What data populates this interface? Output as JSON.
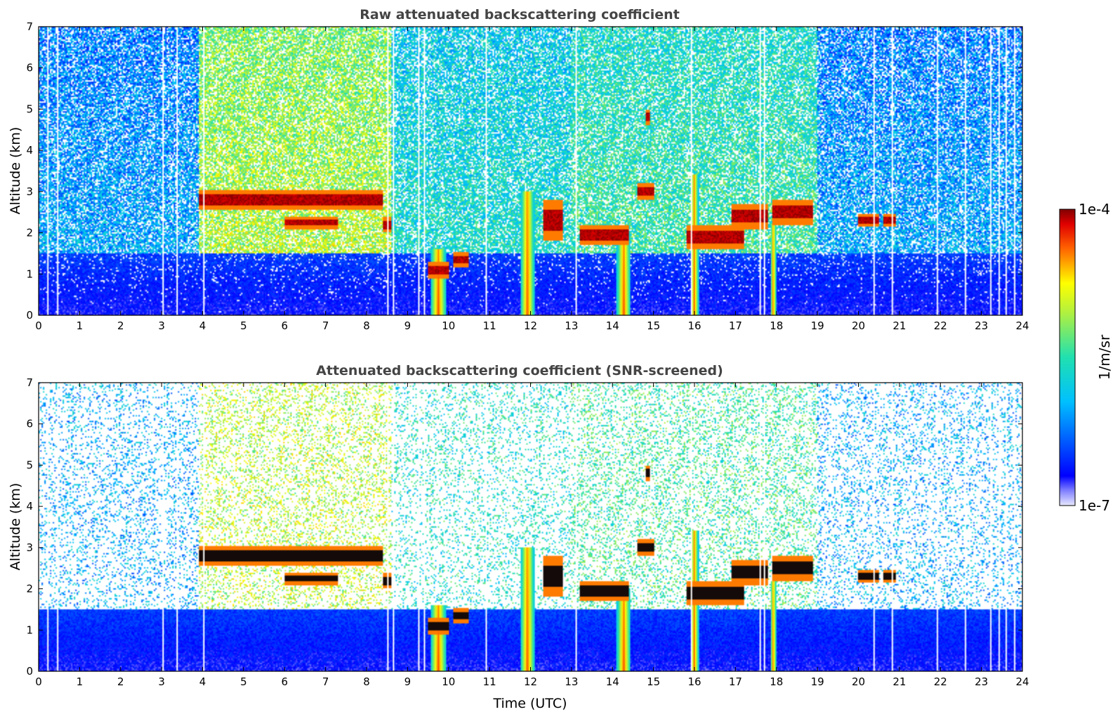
{
  "chart_data": [
    {
      "type": "heatmap",
      "title": "Raw attenuated backscattering coefficient",
      "xlabel": "",
      "ylabel": "Altitude (km)",
      "xlim": [
        0,
        24
      ],
      "ylim": [
        0,
        7
      ],
      "x_ticks": [
        "0",
        "1",
        "2",
        "3",
        "4",
        "5",
        "6",
        "7",
        "8",
        "9",
        "10",
        "11",
        "12",
        "13",
        "14",
        "15",
        "16",
        "17",
        "18",
        "19",
        "20",
        "21",
        "22",
        "23",
        "24"
      ],
      "y_ticks": [
        "0",
        "1",
        "2",
        "3",
        "4",
        "5",
        "6",
        "7"
      ],
      "background_regimes": [
        {
          "t_start": 0,
          "t_end": 3.9,
          "level": "low"
        },
        {
          "t_start": 3.9,
          "t_end": 8.6,
          "level": "high"
        },
        {
          "t_start": 8.6,
          "t_end": 13.0,
          "level": "mid"
        },
        {
          "t_start": 13.0,
          "t_end": 19.0,
          "level": "mid-high"
        },
        {
          "t_start": 19.0,
          "t_end": 24,
          "level": "low"
        }
      ],
      "cloud_layers": [
        {
          "t_start": 3.9,
          "t_end": 8.4,
          "alt_km": 2.8,
          "thickness_km": 0.25
        },
        {
          "t_start": 6.0,
          "t_end": 7.3,
          "alt_km": 2.25,
          "thickness_km": 0.15
        },
        {
          "t_start": 8.4,
          "t_end": 8.6,
          "alt_km": 2.2,
          "thickness_km": 0.2
        },
        {
          "t_start": 9.5,
          "t_end": 10.0,
          "alt_km": 1.1,
          "thickness_km": 0.2
        },
        {
          "t_start": 10.1,
          "t_end": 10.5,
          "alt_km": 1.35,
          "thickness_km": 0.2
        },
        {
          "t_start": 12.3,
          "t_end": 12.8,
          "alt_km": 2.3,
          "thickness_km": 0.5
        },
        {
          "t_start": 13.2,
          "t_end": 14.4,
          "alt_km": 1.95,
          "thickness_km": 0.25
        },
        {
          "t_start": 14.6,
          "t_end": 15.0,
          "alt_km": 3.0,
          "thickness_km": 0.2
        },
        {
          "t_start": 14.8,
          "t_end": 14.9,
          "alt_km": 4.8,
          "thickness_km": 0.2
        },
        {
          "t_start": 15.8,
          "t_end": 17.2,
          "alt_km": 1.9,
          "thickness_km": 0.3
        },
        {
          "t_start": 16.9,
          "t_end": 17.8,
          "alt_km": 2.4,
          "thickness_km": 0.3
        },
        {
          "t_start": 17.9,
          "t_end": 18.9,
          "alt_km": 2.5,
          "thickness_km": 0.3
        },
        {
          "t_start": 20.0,
          "t_end": 20.5,
          "alt_km": 2.3,
          "thickness_km": 0.15
        },
        {
          "t_start": 20.6,
          "t_end": 20.9,
          "alt_km": 2.3,
          "thickness_km": 0.15
        }
      ],
      "precipitation_shafts": [
        {
          "t_start": 9.55,
          "t_end": 9.95,
          "top_km": 1.6
        },
        {
          "t_start": 11.75,
          "t_end": 12.1,
          "top_km": 3.0
        },
        {
          "t_start": 14.1,
          "t_end": 14.45,
          "top_km": 2.0
        },
        {
          "t_start": 15.9,
          "t_end": 16.1,
          "top_km": 3.4
        },
        {
          "t_start": 17.85,
          "t_end": 18.0,
          "top_km": 2.2
        }
      ]
    },
    {
      "type": "heatmap",
      "title": "Attenuated backscattering coefficient (SNR-screened)",
      "xlabel": "Time (UTC)",
      "ylabel": "Altitude (km)",
      "xlim": [
        0,
        24
      ],
      "ylim": [
        0,
        7
      ],
      "x_ticks": [
        "0",
        "1",
        "2",
        "3",
        "4",
        "5",
        "6",
        "7",
        "8",
        "9",
        "10",
        "11",
        "12",
        "13",
        "14",
        "15",
        "16",
        "17",
        "18",
        "19",
        "20",
        "21",
        "22",
        "23",
        "24"
      ],
      "y_ticks": [
        "0",
        "1",
        "2",
        "3",
        "4",
        "5",
        "6",
        "7"
      ],
      "screened": true
    }
  ],
  "colorbar": {
    "label": "1/m/sr",
    "max_label": "1e-4",
    "min_label": "1e-7",
    "scale": "log",
    "colormap": "jet"
  }
}
